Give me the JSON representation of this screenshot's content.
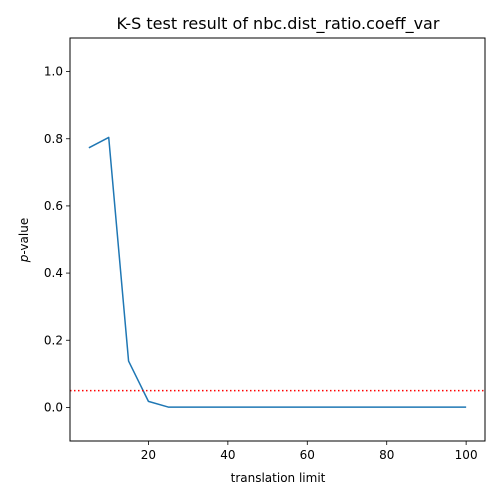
{
  "chart_data": {
    "type": "line",
    "title": "K-S test result of nbc.dist_ratio.coeff_var",
    "xlabel": "translation limit",
    "ylabel_prefix": "p",
    "ylabel_suffix": "-value",
    "xlim": [
      0.25,
      104.75
    ],
    "ylim": [
      -0.1,
      1.1
    ],
    "xticks": [
      20,
      40,
      60,
      80,
      100
    ],
    "yticks": [
      0.0,
      0.2,
      0.4,
      0.6,
      0.8,
      1.0
    ],
    "xtick_labels": [
      "20",
      "40",
      "60",
      "80",
      "100"
    ],
    "ytick_labels": [
      "0.0",
      "0.2",
      "0.4",
      "0.6",
      "0.8",
      "1.0"
    ],
    "series": [
      {
        "name": "p-value",
        "color": "#1f77b4",
        "x": [
          5,
          10,
          15,
          20,
          25,
          30,
          35,
          40,
          45,
          50,
          55,
          60,
          65,
          70,
          75,
          80,
          85,
          90,
          95,
          100
        ],
        "y": [
          0.773,
          0.804,
          0.138,
          0.018,
          0.001,
          0.001,
          0.001,
          0.001,
          0.001,
          0.001,
          0.001,
          0.001,
          0.001,
          0.001,
          0.001,
          0.001,
          0.001,
          0.001,
          0.001,
          0.001
        ]
      }
    ],
    "reference_line": {
      "y": 0.05,
      "color": "#ff0000",
      "style": "dotted"
    }
  }
}
